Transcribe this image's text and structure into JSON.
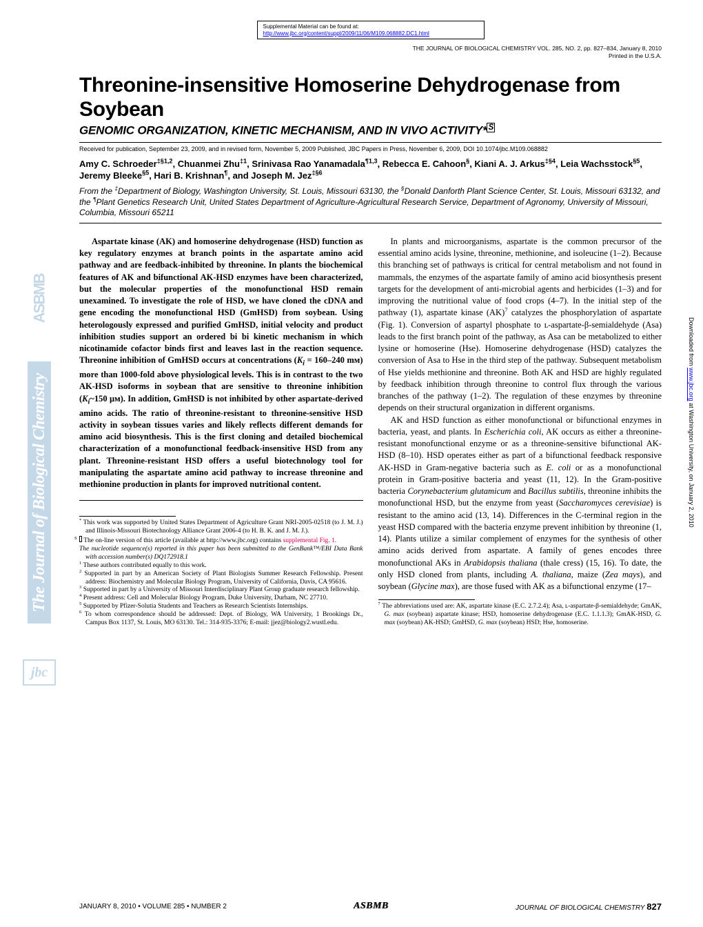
{
  "supplement": {
    "label": "Supplemental Material can be found at:",
    "url": "http://www.jbc.org/content/suppl/2009/11/06/M109.068882.DC1.html"
  },
  "journal_header": {
    "line1": "THE JOURNAL OF BIOLOGICAL CHEMISTRY  VOL. 285, NO. 2, pp. 827–834, January 8, 2010",
    "line2": "Printed in the U.S.A."
  },
  "title": "Threonine-insensitive Homoserine Dehydrogenase from Soybean",
  "subtitle": "GENOMIC ORGANIZATION, KINETIC MECHANISM, AND IN VIVO ACTIVITY*",
  "received": "Received for publication, September 23, 2009, and in revised form, November 5, 2009  Published, JBC Papers in Press, November 6, 2009, DOI 10.1074/jbc.M109.068882",
  "authors_html": "Amy C. Schroeder<sup>‡§1,2</sup>, Chuanmei Zhu<sup>‡1</sup>, Srinivasa Rao Yanamadala<sup>¶1,3</sup>, Rebecca E. Cahoon<sup>§</sup>, Kiani A. J. Arkus<sup>‡§4</sup>, Leia Wachsstock<sup>§5</sup>, Jeremy Bleeke<sup>§5</sup>, Hari B. Krishnan<sup>¶</sup>, and Joseph M. Jez<sup>‡§6</sup>",
  "affiliations_html": "From the <sup>‡</sup>Department of Biology, Washington University, St. Louis, Missouri 63130, the <sup>§</sup>Donald Danforth Plant Science Center, St. Louis, Missouri 63132, and the <sup>¶</sup>Plant Genetics Research Unit, United States Department of Agriculture-Agricultural Research Service, Department of Agronomy, University of Missouri, Columbia, Missouri 65211",
  "abstract_html": "Aspartate kinase (AK) and homoserine dehydrogenase (HSD) function as key regulatory enzymes at branch points in the aspartate amino acid pathway and are feedback-inhibited by threonine. In plants the biochemical features of AK and bifunctional AK-HSD enzymes have been characterized, but the molecular properties of the monofunctional HSD remain unexamined. To investigate the role of HSD, we have cloned the cDNA and gene encoding the monofunctional HSD (GmHSD) from soybean. Using heterologously expressed and purified GmHSD, initial velocity and product inhibition studies support an ordered bi bi kinetic mechanism in which nicotinamide cofactor binds first and leaves last in the reaction sequence. Threonine inhibition of GmHSD occurs at concentrations (<i>K<sub>i</sub></i> = 160–240 mᴍ) more than 1000-fold above physiological levels. This is in contrast to the two AK-HSD isoforms in soybean that are sensitive to threonine inhibition (<i>K<sub>i</sub></i>~150 μᴍ). In addition, GmHSD is not inhibited by other aspartate-derived amino acids. The ratio of threonine-resistant to threonine-sensitive HSD activity in soybean tissues varies and likely reflects different demands for amino acid biosynthesis. This is the first cloning and detailed biochemical characterization of a monofunctional feedback-insensitive HSD from any plant. Threonine-resistant HSD offers a useful biotechnology tool for manipulating the aspartate amino acid pathway to increase threonine and methionine production in plants for improved nutritional content.",
  "body_p1_html": "In plants and microorganisms, aspartate is the common precursor of the essential amino acids lysine, threonine, methionine, and isoleucine (1–2). Because this branching set of pathways is critical for central metabolism and not found in mammals, the enzymes of the aspartate family of amino acid biosynthesis present targets for the development of anti-microbial agents and herbicides (1–3) and for improving the nutritional value of food crops (4–7). In the initial step of the pathway (1), aspartate kinase (AK)<sup>7</sup> catalyzes the phosphorylation of aspartate (Fig. 1). Conversion of aspartyl phosphate to ʟ-aspartate-β-semialdehyde (Asa) leads to the first branch point of the pathway, as Asa can be metabolized to either lysine or homoserine (Hse). Homoserine dehydrogenase (HSD) catalyzes the conversion of Asa to Hse in the third step of the pathway. Subsequent metabolism of Hse yields methionine and threonine. Both AK and HSD are highly regulated by feedback inhibition through threonine to control flux through the various branches of the pathway (1–2). The regulation of these enzymes by threonine depends on their structural organization in different organisms.",
  "body_p2_html": "AK and HSD function as either monofunctional or bifunctional enzymes in bacteria, yeast, and plants. In <i>Escherichia coli</i>, AK occurs as either a threonine-resistant monofunctional enzyme or as a threonine-sensitive bifunctional AK-HSD (8–10). HSD operates either as part of a bifunctional feedback responsive AK-HSD in Gram-negative bacteria such as <i>E. coli</i> or as a monofunctional protein in Gram-positive bacteria and yeast (11, 12). In the Gram-positive bacteria <i>Corynebacterium glutamicum</i> and <i>Bacillus subtilis</i>, threonine inhibits the monofunctional HSD, but the enzyme from yeast (<i>Saccharomyces cerevisiae</i>) is resistant to the amino acid (13, 14). Differences in the C-terminal region in the yeast HSD compared with the bacteria enzyme prevent inhibition by threonine (1, 14). Plants utilize a similar complement of enzymes for the synthesis of other amino acids derived from aspartate. A family of genes encodes three monofunctional AKs in <i>Arabidopsis thaliana</i> (thale cress) (15, 16). To date, the only HSD cloned from plants, including <i>A. thaliana</i>, maize (<i>Zea mays</i>), and soybean (<i>Glycine max</i>), are those fused with AK as a bifunctional enzyme (17–",
  "footnotes_left": [
    {
      "marker": "*",
      "html": "This work was supported by United States Department of Agriculture Grant NRI-2005-02518 (to J. M. J.) and Illinois-Missouri Biotechnology Alliance Grant 2006-4 (to H. B. K. and J. M. J.)."
    },
    {
      "marker": "S",
      "html": "The on-line version of this article (available at http://www.jbc.org) contains <span class='slink'>supplemental Fig. 1.</span>",
      "boxed": true
    },
    {
      "marker": "",
      "html": "<i>The nucleotide sequence(s) reported in this paper has been submitted to the GenBank™/EBI Data Bank with accession number(s) DQ172918.1</i>"
    },
    {
      "marker": "1",
      "html": "These authors contributed equally to this work."
    },
    {
      "marker": "2",
      "html": "Supported in part by an American Society of Plant Biologists Summer Research Fellowship. Present address: Biochemistry and Molecular Biology Program, University of California, Davis, CA 95616."
    },
    {
      "marker": "3",
      "html": "Supported in part by a University of Missouri Interdisciplinary Plant Group graduate research fellowship."
    },
    {
      "marker": "4",
      "html": "Present address: Cell and Molecular Biology Program, Duke University, Durham, NC 27710."
    },
    {
      "marker": "5",
      "html": "Supported by Pfizer-Solutia Students and Teachers as Research Scientists Internships."
    },
    {
      "marker": "6",
      "html": "To whom correspondence should be addressed: Dept. of Biology, WA University, 1 Brookings Dr., Campus Box 1137, St. Louis, MO 63130. Tel.: 314-935-3376; E-mail: jjez@biology2.wustl.edu."
    }
  ],
  "footnotes_right": [
    {
      "marker": "7",
      "html": "The abbreviations used are: AK, aspartate kinase (E.C. 2.7.2.4); Asa, ʟ-aspartate-β-semialdehyde; GmAK, <i>G. max</i> (soybean) aspartate kinase; HSD, homoserine dehydrogenase (E.C. 1.1.1.3); GmAK-HSD, <i>G. max</i> (soybean) AK-HSD; GmHSD, <i>G. max</i> (soybean) HSD; Hse, homoserine."
    }
  ],
  "left_rail": {
    "asbmb": "ASBMB",
    "jbc_long": "The Journal of Biological Chemistry",
    "jbc_short": "jbc"
  },
  "right_rail_html": "Downloaded from <a href='#'>www.jbc.org</a> at Washington University, on January 2, 2010",
  "footer": {
    "left": "JANUARY 8, 2010 • VOLUME 285 • NUMBER 2",
    "center": "ASBMB",
    "right_html": "<i>JOURNAL OF BIOLOGICAL CHEMISTRY</i>  <b>827</b>"
  },
  "colors": {
    "background": "#ffffff",
    "text": "#000000",
    "rail": "#c5d8e8",
    "link_blue": "#0000ee",
    "link_red": "#d00050"
  }
}
